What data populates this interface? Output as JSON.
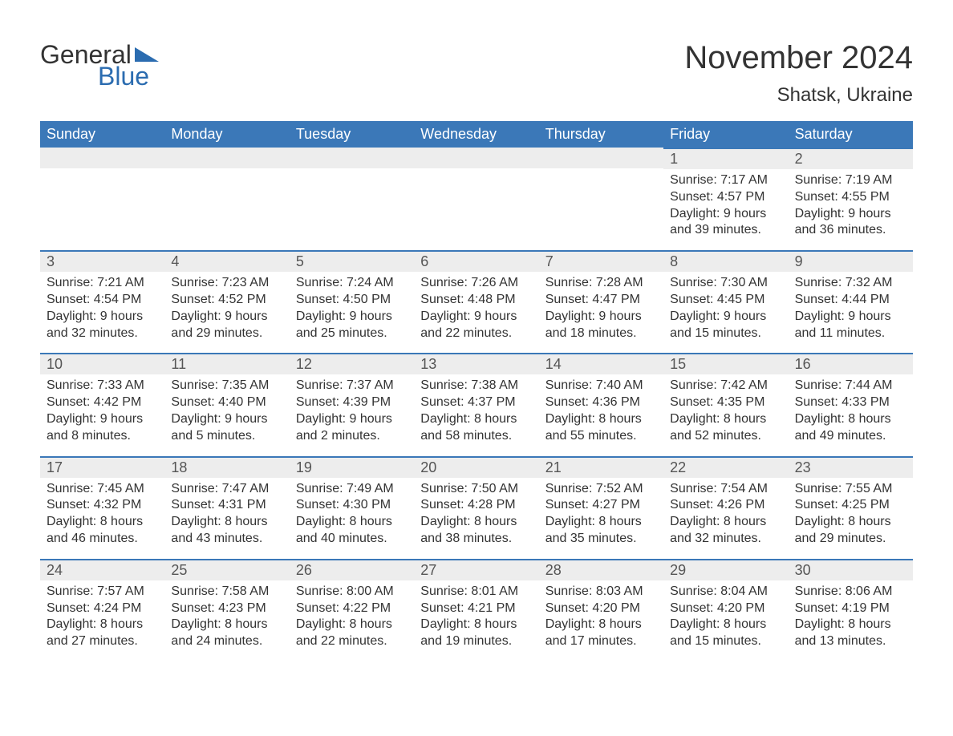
{
  "logo": {
    "word1": "General",
    "word2": "Blue",
    "tri_color": "#2b6cb0"
  },
  "title": "November 2024",
  "location": "Shatsk, Ukraine",
  "colors": {
    "header_bg": "#3b78b8",
    "header_text": "#ffffff",
    "daytop_bg": "#ededed",
    "daytop_border": "#3b78b8",
    "text": "#333333",
    "logo_blue": "#2b6cb0"
  },
  "days_of_week": [
    "Sunday",
    "Monday",
    "Tuesday",
    "Wednesday",
    "Thursday",
    "Friday",
    "Saturday"
  ],
  "labels": {
    "sunrise": "Sunrise:",
    "sunset": "Sunset:",
    "daylight": "Daylight:"
  },
  "weeks": [
    [
      {
        "blank": true
      },
      {
        "blank": true
      },
      {
        "blank": true
      },
      {
        "blank": true
      },
      {
        "blank": true
      },
      {
        "n": "1",
        "sunrise": "7:17 AM",
        "sunset": "4:57 PM",
        "dl1": "9 hours",
        "dl2": "and 39 minutes."
      },
      {
        "n": "2",
        "sunrise": "7:19 AM",
        "sunset": "4:55 PM",
        "dl1": "9 hours",
        "dl2": "and 36 minutes."
      }
    ],
    [
      {
        "n": "3",
        "sunrise": "7:21 AM",
        "sunset": "4:54 PM",
        "dl1": "9 hours",
        "dl2": "and 32 minutes."
      },
      {
        "n": "4",
        "sunrise": "7:23 AM",
        "sunset": "4:52 PM",
        "dl1": "9 hours",
        "dl2": "and 29 minutes."
      },
      {
        "n": "5",
        "sunrise": "7:24 AM",
        "sunset": "4:50 PM",
        "dl1": "9 hours",
        "dl2": "and 25 minutes."
      },
      {
        "n": "6",
        "sunrise": "7:26 AM",
        "sunset": "4:48 PM",
        "dl1": "9 hours",
        "dl2": "and 22 minutes."
      },
      {
        "n": "7",
        "sunrise": "7:28 AM",
        "sunset": "4:47 PM",
        "dl1": "9 hours",
        "dl2": "and 18 minutes."
      },
      {
        "n": "8",
        "sunrise": "7:30 AM",
        "sunset": "4:45 PM",
        "dl1": "9 hours",
        "dl2": "and 15 minutes."
      },
      {
        "n": "9",
        "sunrise": "7:32 AM",
        "sunset": "4:44 PM",
        "dl1": "9 hours",
        "dl2": "and 11 minutes."
      }
    ],
    [
      {
        "n": "10",
        "sunrise": "7:33 AM",
        "sunset": "4:42 PM",
        "dl1": "9 hours",
        "dl2": "and 8 minutes."
      },
      {
        "n": "11",
        "sunrise": "7:35 AM",
        "sunset": "4:40 PM",
        "dl1": "9 hours",
        "dl2": "and 5 minutes."
      },
      {
        "n": "12",
        "sunrise": "7:37 AM",
        "sunset": "4:39 PM",
        "dl1": "9 hours",
        "dl2": "and 2 minutes."
      },
      {
        "n": "13",
        "sunrise": "7:38 AM",
        "sunset": "4:37 PM",
        "dl1": "8 hours",
        "dl2": "and 58 minutes."
      },
      {
        "n": "14",
        "sunrise": "7:40 AM",
        "sunset": "4:36 PM",
        "dl1": "8 hours",
        "dl2": "and 55 minutes."
      },
      {
        "n": "15",
        "sunrise": "7:42 AM",
        "sunset": "4:35 PM",
        "dl1": "8 hours",
        "dl2": "and 52 minutes."
      },
      {
        "n": "16",
        "sunrise": "7:44 AM",
        "sunset": "4:33 PM",
        "dl1": "8 hours",
        "dl2": "and 49 minutes."
      }
    ],
    [
      {
        "n": "17",
        "sunrise": "7:45 AM",
        "sunset": "4:32 PM",
        "dl1": "8 hours",
        "dl2": "and 46 minutes."
      },
      {
        "n": "18",
        "sunrise": "7:47 AM",
        "sunset": "4:31 PM",
        "dl1": "8 hours",
        "dl2": "and 43 minutes."
      },
      {
        "n": "19",
        "sunrise": "7:49 AM",
        "sunset": "4:30 PM",
        "dl1": "8 hours",
        "dl2": "and 40 minutes."
      },
      {
        "n": "20",
        "sunrise": "7:50 AM",
        "sunset": "4:28 PM",
        "dl1": "8 hours",
        "dl2": "and 38 minutes."
      },
      {
        "n": "21",
        "sunrise": "7:52 AM",
        "sunset": "4:27 PM",
        "dl1": "8 hours",
        "dl2": "and 35 minutes."
      },
      {
        "n": "22",
        "sunrise": "7:54 AM",
        "sunset": "4:26 PM",
        "dl1": "8 hours",
        "dl2": "and 32 minutes."
      },
      {
        "n": "23",
        "sunrise": "7:55 AM",
        "sunset": "4:25 PM",
        "dl1": "8 hours",
        "dl2": "and 29 minutes."
      }
    ],
    [
      {
        "n": "24",
        "sunrise": "7:57 AM",
        "sunset": "4:24 PM",
        "dl1": "8 hours",
        "dl2": "and 27 minutes."
      },
      {
        "n": "25",
        "sunrise": "7:58 AM",
        "sunset": "4:23 PM",
        "dl1": "8 hours",
        "dl2": "and 24 minutes."
      },
      {
        "n": "26",
        "sunrise": "8:00 AM",
        "sunset": "4:22 PM",
        "dl1": "8 hours",
        "dl2": "and 22 minutes."
      },
      {
        "n": "27",
        "sunrise": "8:01 AM",
        "sunset": "4:21 PM",
        "dl1": "8 hours",
        "dl2": "and 19 minutes."
      },
      {
        "n": "28",
        "sunrise": "8:03 AM",
        "sunset": "4:20 PM",
        "dl1": "8 hours",
        "dl2": "and 17 minutes."
      },
      {
        "n": "29",
        "sunrise": "8:04 AM",
        "sunset": "4:20 PM",
        "dl1": "8 hours",
        "dl2": "and 15 minutes."
      },
      {
        "n": "30",
        "sunrise": "8:06 AM",
        "sunset": "4:19 PM",
        "dl1": "8 hours",
        "dl2": "and 13 minutes."
      }
    ]
  ]
}
